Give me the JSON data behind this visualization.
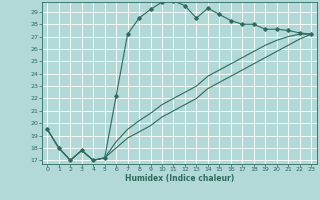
{
  "title": "",
  "xlabel": "Humidex (Indice chaleur)",
  "bg_color": "#b2d8d8",
  "grid_color": "#ffffff",
  "line_color": "#2e6b5e",
  "xlim_min": -0.5,
  "xlim_max": 23.5,
  "ylim_min": 16.7,
  "ylim_max": 29.8,
  "x_ticks": [
    0,
    1,
    2,
    3,
    4,
    5,
    6,
    7,
    8,
    9,
    10,
    11,
    12,
    13,
    14,
    15,
    16,
    17,
    18,
    19,
    20,
    21,
    22,
    23
  ],
  "y_ticks": [
    17,
    18,
    19,
    20,
    21,
    22,
    23,
    24,
    25,
    26,
    27,
    28,
    29
  ],
  "curve1_x": [
    0,
    1,
    2,
    3,
    4,
    5,
    6,
    7,
    8,
    9,
    10,
    11,
    12,
    13,
    14,
    15,
    16,
    17,
    18,
    19,
    20,
    21,
    22,
    23
  ],
  "curve1_y": [
    19.5,
    18.0,
    17.0,
    17.8,
    17.0,
    17.2,
    22.2,
    27.2,
    28.5,
    29.2,
    29.8,
    29.9,
    29.5,
    28.5,
    29.3,
    28.8,
    28.3,
    28.0,
    28.0,
    27.6,
    27.6,
    27.5,
    27.3,
    27.2
  ],
  "curve2_x": [
    0,
    1,
    2,
    3,
    4,
    5,
    6,
    7,
    8,
    9,
    10,
    11,
    12,
    13,
    14,
    15,
    16,
    17,
    18,
    19,
    20,
    21,
    22,
    23
  ],
  "curve2_y": [
    19.5,
    18.0,
    17.0,
    17.8,
    17.0,
    17.2,
    18.5,
    19.5,
    20.2,
    20.8,
    21.5,
    22.0,
    22.5,
    23.0,
    23.8,
    24.3,
    24.8,
    25.3,
    25.8,
    26.3,
    26.7,
    27.0,
    27.2,
    27.2
  ],
  "curve3_x": [
    0,
    1,
    2,
    3,
    4,
    5,
    6,
    7,
    8,
    9,
    10,
    11,
    12,
    13,
    14,
    15,
    16,
    17,
    18,
    19,
    20,
    21,
    22,
    23
  ],
  "curve3_y": [
    19.5,
    18.0,
    17.0,
    17.8,
    17.0,
    17.2,
    18.0,
    18.8,
    19.3,
    19.8,
    20.5,
    21.0,
    21.5,
    22.0,
    22.8,
    23.3,
    23.8,
    24.3,
    24.8,
    25.3,
    25.8,
    26.3,
    26.8,
    27.2
  ]
}
